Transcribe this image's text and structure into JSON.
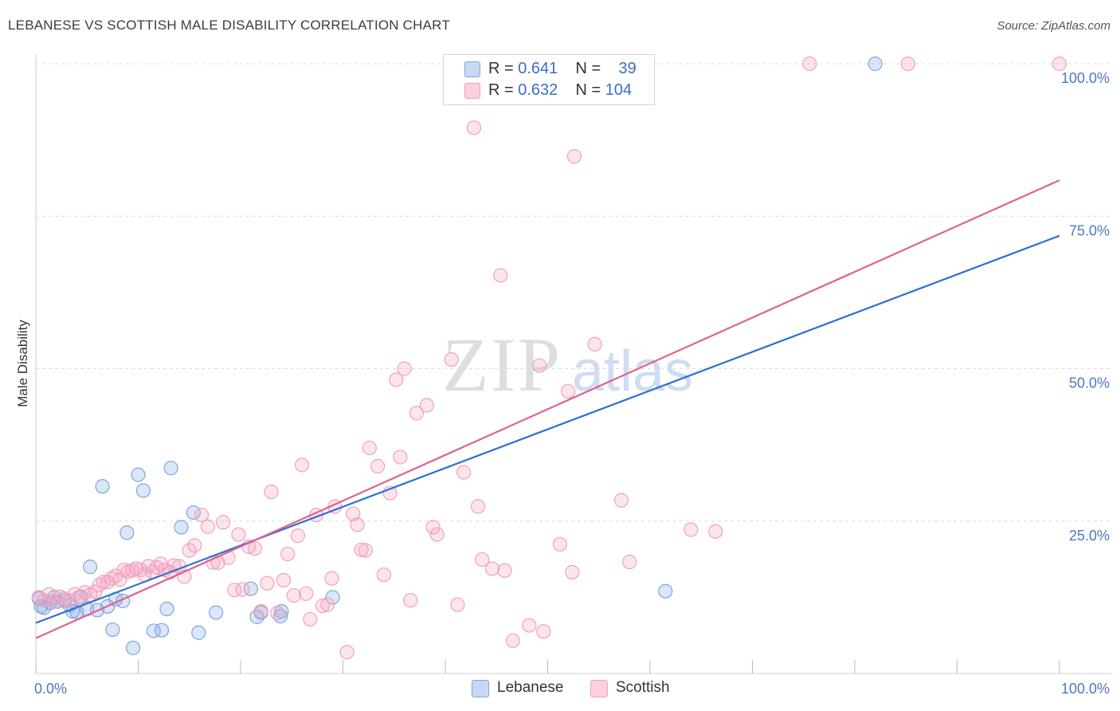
{
  "header": {
    "title": "LEBANESE VS SCOTTISH MALE DISABILITY CORRELATION CHART",
    "source": "Source: ZipAtlas.com"
  },
  "watermark": {
    "zip": "ZIP",
    "atlas": "atlas"
  },
  "legend": {
    "r_label": "R =",
    "n_label": "N =",
    "rows": [
      {
        "r": "0.641",
        "n": "39",
        "color": "#7ea6e0"
      },
      {
        "r": "0.632",
        "n": "104",
        "color": "#f2a0bd"
      }
    ]
  },
  "bottom_legend": [
    "Lebanese",
    "Scottish"
  ],
  "chart_data": {
    "type": "scatter",
    "ylabel": "Male Disability",
    "xlabel": "",
    "xlim": [
      0,
      100
    ],
    "ylim": [
      0,
      102
    ],
    "x_tick_labels": [
      "0.0%",
      "100.0%"
    ],
    "y_ticks": [
      25,
      50,
      75,
      100
    ],
    "y_tick_labels": [
      "25.0%",
      "50.0%",
      "75.0%",
      "100.0%"
    ],
    "grid": "horizontal dashed",
    "legend_position": "top-center",
    "series": [
      {
        "name": "Lebanese",
        "color": "#7ea6e0",
        "line_color": "#2e6fd1",
        "trend": {
          "x": [
            0,
            100
          ],
          "y": [
            8.3,
            71.8
          ]
        },
        "points": [
          [
            0.3,
            12.3
          ],
          [
            0.8,
            10.8
          ],
          [
            1.4,
            11.6
          ],
          [
            2.1,
            11.8
          ],
          [
            2.8,
            12.0
          ],
          [
            3.3,
            11.2
          ],
          [
            3.6,
            10.2
          ],
          [
            4.4,
            12.6
          ],
          [
            5.0,
            10.6
          ],
          [
            6.0,
            10.4
          ],
          [
            5.3,
            17.5
          ],
          [
            7.0,
            11.0
          ],
          [
            7.8,
            12.2
          ],
          [
            8.5,
            11.9
          ],
          [
            6.5,
            30.7
          ],
          [
            7.5,
            7.2
          ],
          [
            9.5,
            4.2
          ],
          [
            8.9,
            23.1
          ],
          [
            10.0,
            32.6
          ],
          [
            10.5,
            30.0
          ],
          [
            11.5,
            7.0
          ],
          [
            12.3,
            7.1
          ],
          [
            12.8,
            10.6
          ],
          [
            13.2,
            33.7
          ],
          [
            14.2,
            24.0
          ],
          [
            15.4,
            26.4
          ],
          [
            15.9,
            6.7
          ],
          [
            17.6,
            10.0
          ],
          [
            21.0,
            13.9
          ],
          [
            21.6,
            9.3
          ],
          [
            22.0,
            10.0
          ],
          [
            23.9,
            9.4
          ],
          [
            24.0,
            10.2
          ],
          [
            29.0,
            12.5
          ],
          [
            61.5,
            13.5
          ],
          [
            82.0,
            100.0
          ],
          [
            0.5,
            11.0
          ],
          [
            1.8,
            12.5
          ],
          [
            4.0,
            10.1
          ]
        ]
      },
      {
        "name": "Scottish",
        "color": "#f2a0bd",
        "line_color": "#e0628f",
        "trend": {
          "x": [
            0,
            100
          ],
          "y": [
            5.8,
            80.9
          ]
        },
        "points": [
          [
            0.3,
            12.5
          ],
          [
            0.8,
            12.0
          ],
          [
            1.3,
            13.0
          ],
          [
            1.8,
            11.8
          ],
          [
            2.3,
            12.6
          ],
          [
            2.8,
            12.3
          ],
          [
            3.3,
            12.0
          ],
          [
            3.8,
            13.0
          ],
          [
            4.2,
            12.5
          ],
          [
            4.8,
            13.3
          ],
          [
            5.3,
            12.9
          ],
          [
            5.8,
            13.4
          ],
          [
            6.2,
            14.5
          ],
          [
            6.6,
            15.0
          ],
          [
            7.0,
            15.0
          ],
          [
            7.4,
            15.6
          ],
          [
            7.8,
            16.0
          ],
          [
            8.2,
            15.4
          ],
          [
            8.6,
            17.0
          ],
          [
            9.0,
            16.7
          ],
          [
            9.4,
            16.9
          ],
          [
            9.8,
            17.2
          ],
          [
            10.2,
            17.0
          ],
          [
            10.6,
            16.2
          ],
          [
            11.0,
            17.6
          ],
          [
            11.4,
            16.7
          ],
          [
            11.8,
            17.4
          ],
          [
            12.2,
            18.0
          ],
          [
            12.6,
            17.0
          ],
          [
            13.1,
            16.6
          ],
          [
            13.5,
            17.7
          ],
          [
            14.0,
            17.6
          ],
          [
            14.5,
            15.9
          ],
          [
            15.0,
            20.2
          ],
          [
            15.5,
            21.0
          ],
          [
            16.2,
            26.0
          ],
          [
            16.8,
            24.1
          ],
          [
            17.3,
            18.2
          ],
          [
            17.8,
            18.2
          ],
          [
            18.3,
            24.8
          ],
          [
            18.8,
            19.0
          ],
          [
            19.4,
            13.7
          ],
          [
            19.8,
            22.8
          ],
          [
            20.2,
            13.8
          ],
          [
            20.8,
            20.8
          ],
          [
            21.4,
            20.5
          ],
          [
            22.0,
            10.2
          ],
          [
            22.6,
            14.8
          ],
          [
            23.0,
            29.8
          ],
          [
            23.6,
            9.9
          ],
          [
            24.2,
            15.3
          ],
          [
            24.6,
            19.6
          ],
          [
            25.2,
            12.8
          ],
          [
            25.6,
            22.6
          ],
          [
            26.0,
            34.2
          ],
          [
            26.4,
            13.1
          ],
          [
            26.8,
            8.9
          ],
          [
            27.4,
            26.0
          ],
          [
            28.0,
            11.1
          ],
          [
            28.5,
            11.3
          ],
          [
            28.9,
            15.6
          ],
          [
            29.2,
            27.4
          ],
          [
            30.4,
            3.5
          ],
          [
            31.0,
            26.2
          ],
          [
            31.4,
            24.4
          ],
          [
            31.8,
            20.3
          ],
          [
            32.2,
            20.2
          ],
          [
            32.6,
            37.0
          ],
          [
            33.4,
            34.0
          ],
          [
            34.0,
            16.2
          ],
          [
            34.6,
            29.6
          ],
          [
            35.2,
            48.2
          ],
          [
            35.6,
            35.5
          ],
          [
            36.0,
            50.0
          ],
          [
            36.6,
            12.0
          ],
          [
            37.2,
            42.7
          ],
          [
            38.2,
            44.0
          ],
          [
            38.8,
            24.0
          ],
          [
            39.2,
            22.8
          ],
          [
            40.6,
            51.5
          ],
          [
            41.2,
            11.3
          ],
          [
            41.8,
            33.0
          ],
          [
            42.8,
            89.5
          ],
          [
            43.2,
            27.4
          ],
          [
            43.6,
            18.7
          ],
          [
            44.6,
            17.2
          ],
          [
            45.4,
            65.3
          ],
          [
            45.8,
            16.9
          ],
          [
            46.6,
            5.4
          ],
          [
            48.2,
            7.9
          ],
          [
            49.2,
            50.5
          ],
          [
            49.6,
            6.9
          ],
          [
            51.2,
            21.2
          ],
          [
            52.0,
            46.3
          ],
          [
            52.4,
            16.6
          ],
          [
            52.6,
            84.8
          ],
          [
            54.6,
            54.0
          ],
          [
            57.2,
            28.4
          ],
          [
            58.0,
            18.3
          ],
          [
            64.0,
            23.6
          ],
          [
            66.4,
            23.3
          ],
          [
            75.6,
            100.0
          ],
          [
            85.2,
            100.0
          ],
          [
            100.0,
            100.0
          ]
        ]
      }
    ]
  }
}
